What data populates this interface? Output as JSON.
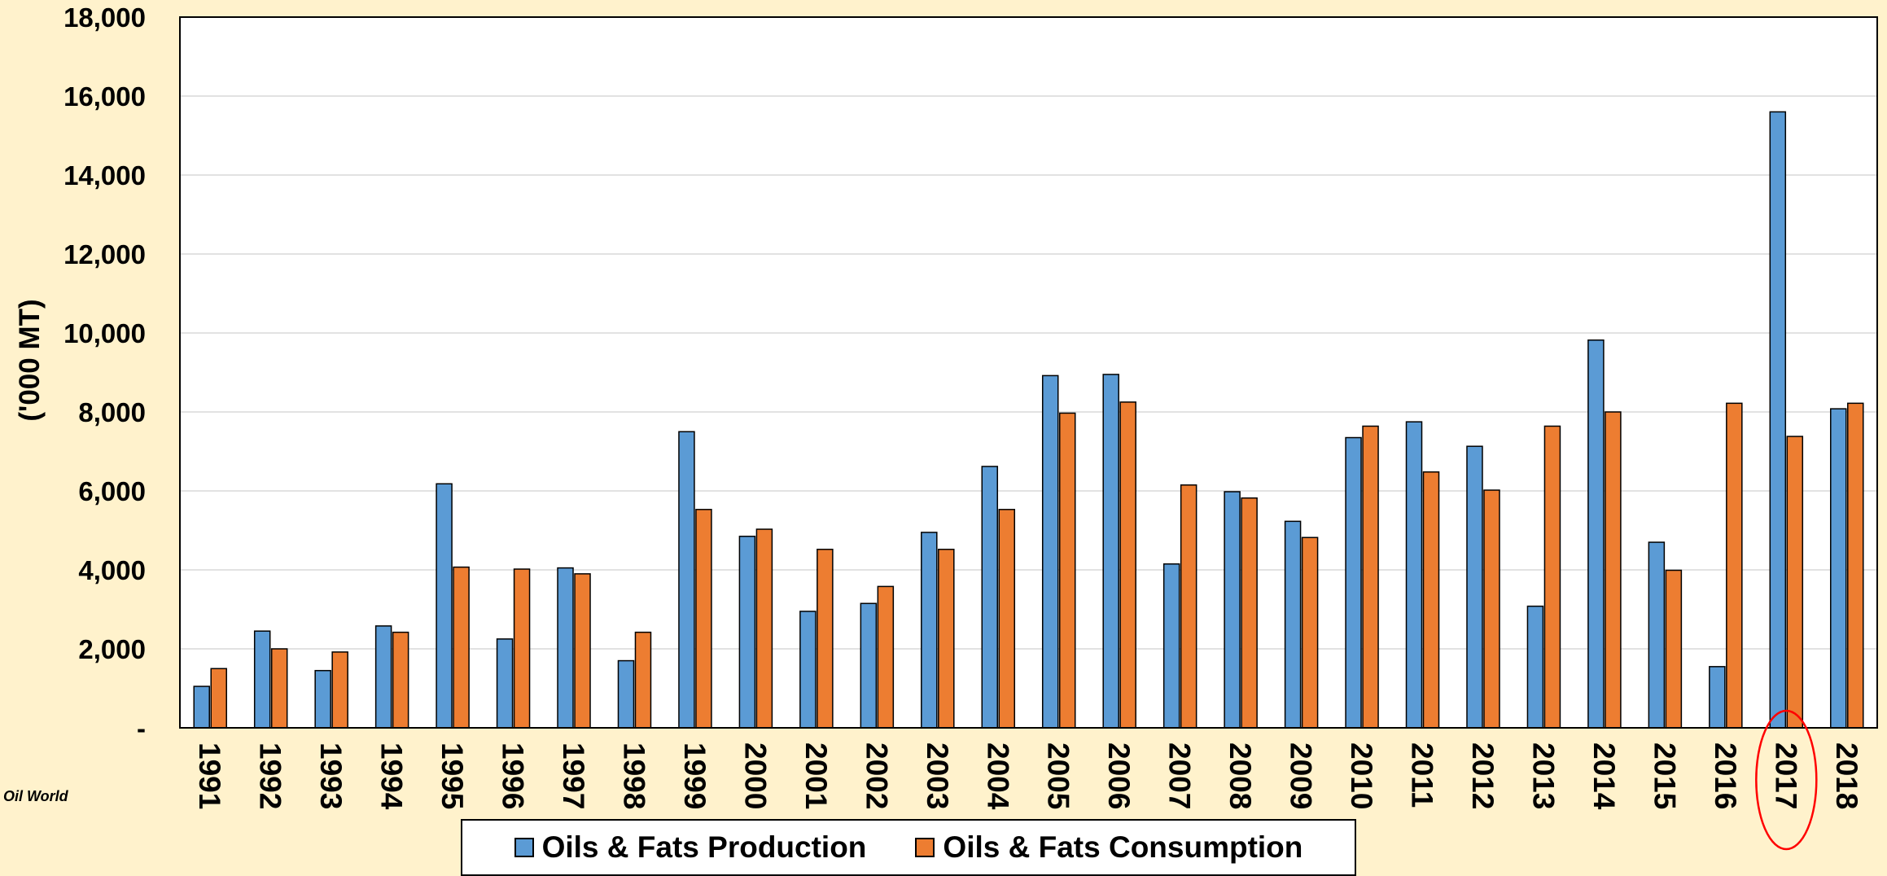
{
  "source": "Oil World",
  "chart_data": {
    "type": "bar",
    "title": "",
    "xlabel": "",
    "ylabel": "('000 MT)",
    "ylim": [
      0,
      18000
    ],
    "yticks": [
      0,
      2000,
      4000,
      6000,
      8000,
      10000,
      12000,
      14000,
      16000,
      18000
    ],
    "ytick_labels": [
      "-",
      "2,000",
      "4,000",
      "6,000",
      "8,000",
      "10,000",
      "12,000",
      "14,000",
      "16,000",
      "18,000"
    ],
    "grid": true,
    "legend_position": "bottom",
    "highlight": {
      "category": "2017",
      "shape": "ellipse",
      "color": "#FF0000"
    },
    "categories": [
      "1991",
      "1992",
      "1993",
      "1994",
      "1995",
      "1996",
      "1997",
      "1998",
      "1999",
      "2000",
      "2001",
      "2002",
      "2003",
      "2004",
      "2005",
      "2006",
      "2007",
      "2008",
      "2009",
      "2010",
      "2011",
      "2012",
      "2013",
      "2014",
      "2015",
      "2016",
      "2017",
      "2018"
    ],
    "series": [
      {
        "name": "Oils & Fats Production",
        "color": "#5B9BD5",
        "values": [
          1050,
          2450,
          1450,
          2580,
          6180,
          2250,
          4050,
          1700,
          7500,
          4850,
          2950,
          3150,
          4950,
          6620,
          8920,
          8950,
          4150,
          5980,
          5230,
          7350,
          7750,
          7130,
          3080,
          9820,
          4700,
          1550,
          15600,
          8080
        ]
      },
      {
        "name": "Oils & Fats Consumption",
        "color": "#ED7D31",
        "values": [
          1500,
          2000,
          1920,
          2420,
          4070,
          4020,
          3900,
          2420,
          5530,
          5030,
          4520,
          3580,
          4520,
          5530,
          7970,
          8250,
          6150,
          5820,
          4820,
          7640,
          6480,
          6020,
          7640,
          8000,
          3990,
          8220,
          7380,
          8220
        ]
      }
    ]
  }
}
